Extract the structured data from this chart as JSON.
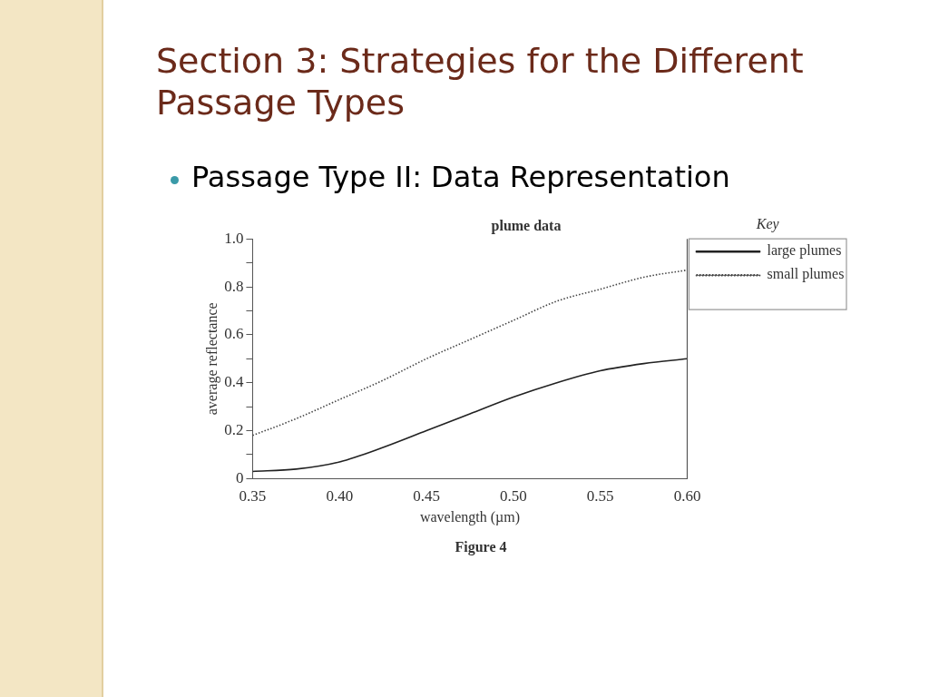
{
  "chart_data": {
    "type": "line",
    "title": "plume data",
    "xlabel": "wavelength (µm)",
    "ylabel": "average reflectance",
    "legend_title": "Key",
    "legend": "right",
    "marker": "none",
    "grid": false,
    "annotations": [
      "Section 3:  Strategies for the Different Passage Types",
      "Passage Type II:  Data Representation",
      "Figure 4"
    ],
    "xlim": [
      0.35,
      0.6
    ],
    "xticks": [
      0.35,
      {
        "value": 0.4,
        "label": "0.40"
      },
      0.45,
      {
        "value": 0.5,
        "label": "0.50"
      },
      0.55,
      {
        "value": 0.6,
        "label": "0.60"
      }
    ],
    "ylim": [
      0,
      1.0
    ],
    "yticks": [
      {
        "value": 0,
        "label": "0"
      },
      {
        "value": 0.1,
        "label": null
      },
      {
        "value": 0.2,
        "label": "0.2"
      },
      {
        "value": 0.3,
        "label": null
      },
      {
        "value": 0.4,
        "label": "0.4"
      },
      {
        "value": 0.5,
        "label": null
      },
      {
        "value": 0.6,
        "label": "0.6"
      },
      {
        "value": 0.7,
        "label": null
      },
      {
        "value": 0.8,
        "label": "0.8"
      },
      {
        "value": 0.9,
        "label": null
      },
      {
        "value": 1.0,
        "label": "1.0"
      }
    ],
    "x": [
      0.35,
      0.375,
      0.4,
      0.425,
      0.45,
      0.475,
      0.5,
      0.525,
      0.55,
      0.575,
      0.6
    ],
    "series": [
      {
        "name": "large plumes",
        "color": "#222222",
        "line_style": "solid",
        "values": [
          0.03,
          0.04,
          0.07,
          0.13,
          0.2,
          0.27,
          0.34,
          0.4,
          0.45,
          0.48,
          0.5
        ]
      },
      {
        "name": "small plumes",
        "color": "#444444",
        "line_style": "dotted",
        "values": [
          0.18,
          0.25,
          0.33,
          0.41,
          0.5,
          0.58,
          0.66,
          0.74,
          0.79,
          0.84,
          0.87
        ]
      }
    ]
  }
}
